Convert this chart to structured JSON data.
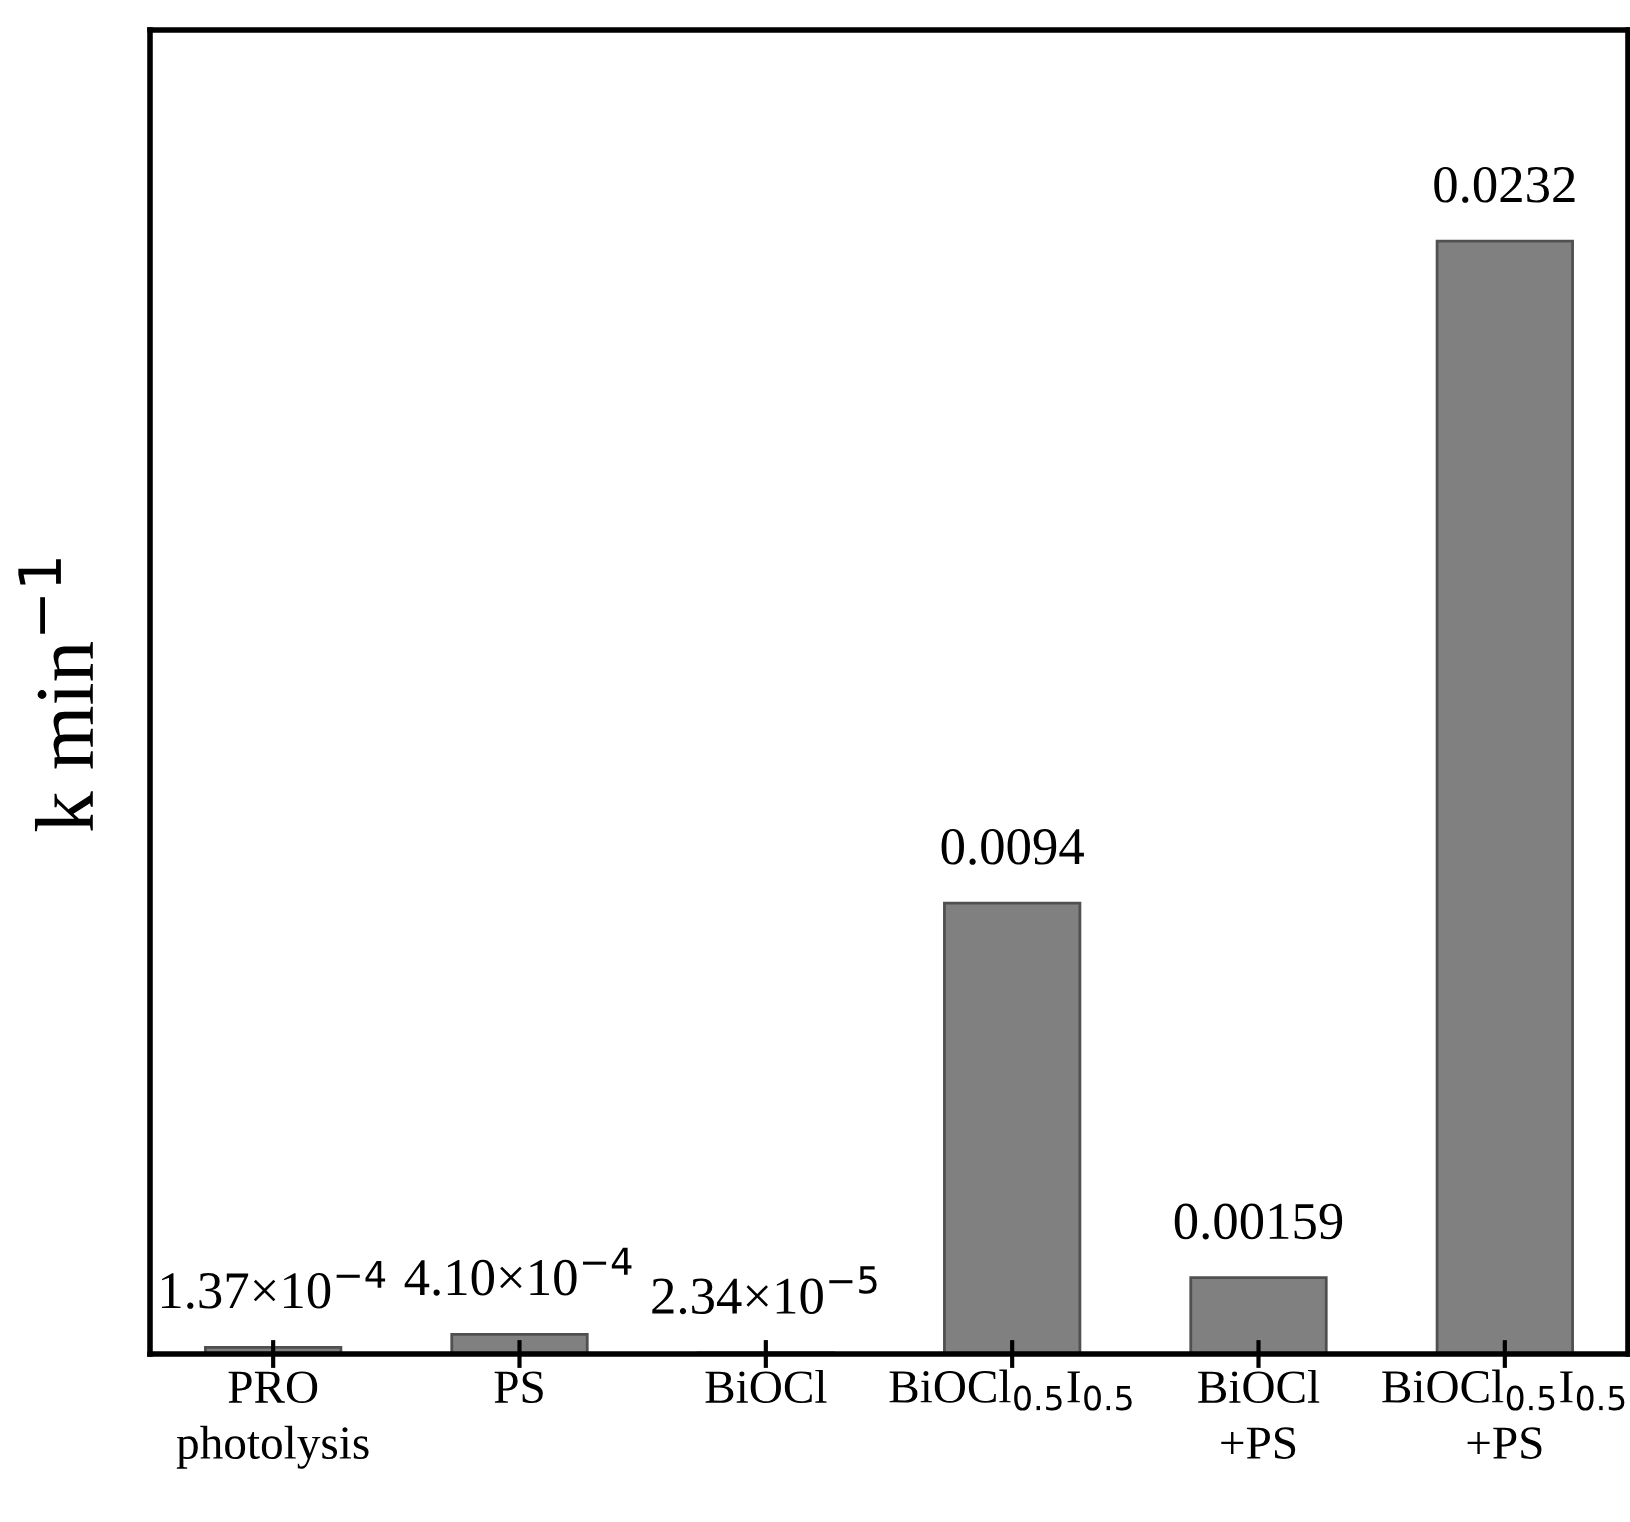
{
  "chart_data": {
    "type": "bar",
    "categories": [
      "PRO\nphotolysis",
      "PS",
      "BiOCl",
      "BiOCl$_{0.5}$I$_{0.5}$",
      "BiOCl\n+PS",
      "BiOCl$_{0.5}$I$_{0.5}$\n+PS"
    ],
    "values": [
      0.000137,
      0.00041,
      2.34e-05,
      0.0094,
      0.00159,
      0.0232
    ],
    "value_labels": [
      "1.37×10$^{−4}$",
      "4.10×10$^{−4}$",
      "2.34×10$^{−5}$",
      "0.0094",
      "0.00159",
      "0.0232"
    ],
    "color": "#808080",
    "ylabel": "k min$^{−1}$",
    "ylim": [
      0,
      0.0276
    ],
    "tick_labels": "x"
  }
}
